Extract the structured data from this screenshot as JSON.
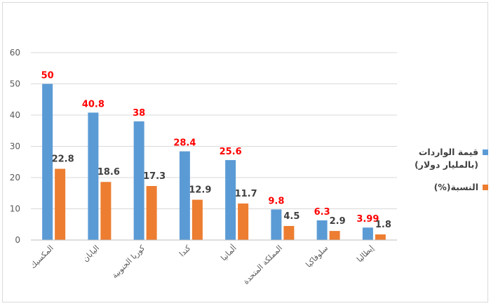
{
  "colors": {
    "series1": "#5b9bd5",
    "series2": "#ed7d31",
    "label1": "#ff0000",
    "label2": "#404040",
    "grid": "#d9d9d9",
    "axis_text": "#595959"
  },
  "chart_data": {
    "type": "bar",
    "categories": [
      "المكسيك",
      "اليابان",
      "كوريا الجنوبية",
      "كندا",
      "ألمانيا",
      "المملكة المتحدة",
      "سلوفاكيا",
      "إيطاليا"
    ],
    "series": [
      {
        "name": "قيمة الواردات (بالمليار دولار)",
        "values": [
          50,
          40.8,
          38,
          28.4,
          25.6,
          9.8,
          6.3,
          3.99
        ],
        "labels": [
          "50",
          "40.8",
          "38",
          "28.4",
          "25.6",
          "9.8",
          "6.3",
          "3.99"
        ]
      },
      {
        "name": "النسبة(%)",
        "values": [
          22.8,
          18.6,
          17.3,
          12.9,
          11.7,
          4.5,
          2.9,
          1.8
        ],
        "labels": [
          "22.8",
          "18.6",
          "17.3",
          "12.9",
          "11.7",
          "4.5",
          "2.9",
          "1.8"
        ]
      }
    ],
    "yticks": [
      "0",
      "10",
      "20",
      "30",
      "40",
      "50",
      "60"
    ],
    "ylim": [
      0,
      60
    ],
    "grid": true,
    "legend_position": "right"
  }
}
